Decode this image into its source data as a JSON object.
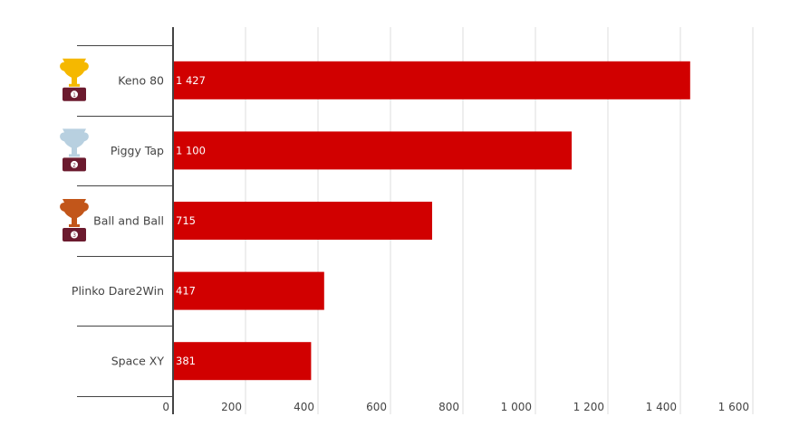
{
  "chart_data": {
    "type": "bar",
    "orientation": "horizontal",
    "categories": [
      "Keno 80",
      "Piggy Tap",
      "Ball and Ball",
      "Plinko Dare2Win",
      "Space XY"
    ],
    "values": [
      1427,
      1100,
      715,
      417,
      381
    ],
    "value_labels": [
      "1 427",
      "1 100",
      "715",
      "417",
      "381"
    ],
    "rank_icons": [
      "gold-trophy-icon",
      "silver-trophy-icon",
      "bronze-trophy-icon",
      null,
      null
    ],
    "xlim": [
      0,
      1600
    ],
    "xticks": [
      0,
      200,
      400,
      600,
      800,
      1000,
      1200,
      1400,
      1600
    ],
    "xtick_labels": [
      "0",
      "200",
      "400",
      "600",
      "800",
      "1 000",
      "1 200",
      "1 400",
      "1 600"
    ],
    "grid": true,
    "title": "",
    "xlabel": "",
    "ylabel": "",
    "colors": {
      "bar": "#d10000",
      "grid": "#dddddd",
      "axis": "#444444",
      "text": "#444444",
      "gold": "#f5b800",
      "silver": "#b8d0e0",
      "bronze": "#c2561a",
      "podium": "#6b1a2e"
    }
  }
}
